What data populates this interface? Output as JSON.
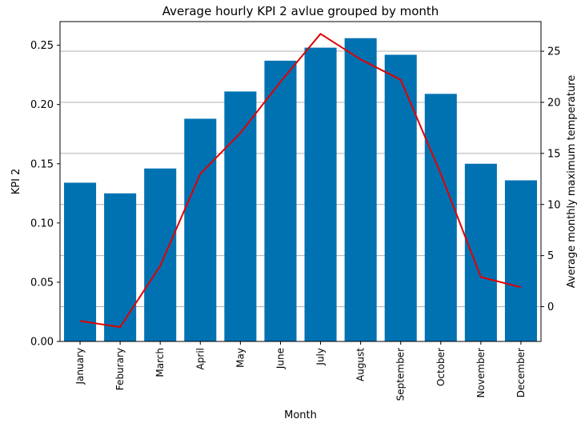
{
  "chart_data": {
    "type": "bar",
    "title": "Average hourly KPI 2 avlue grouped by month",
    "xlabel": "Month",
    "ylabel": "KPI 2",
    "y2label": "Average monthly maximum temperature",
    "categories": [
      "January",
      "Feburary",
      "March",
      "April",
      "May",
      "June",
      "July",
      "August",
      "September",
      "October",
      "November",
      "December"
    ],
    "ylim": [
      0,
      0.27
    ],
    "y2lim": [
      -3.4,
      27.9
    ],
    "yticks": [
      "0.00",
      "0.05",
      "0.10",
      "0.15",
      "0.20",
      "0.25"
    ],
    "y2ticks": [
      "0",
      "5",
      "10",
      "15",
      "20",
      "25"
    ],
    "grid": "horizontal lines at secondary-axis ticks",
    "colors": {
      "bars": "#0072b2",
      "line": "#e00000",
      "grid": "#b0b0b0"
    },
    "series": [
      {
        "type": "bar",
        "axis": "left",
        "values": [
          0.134,
          0.125,
          0.146,
          0.188,
          0.211,
          0.237,
          0.248,
          0.256,
          0.242,
          0.209,
          0.15,
          0.136
        ]
      },
      {
        "type": "line",
        "axis": "right",
        "values": [
          -1.4,
          -2.0,
          4.0,
          13.0,
          17.0,
          22.0,
          26.7,
          24.2,
          22.2,
          13.0,
          2.9,
          1.9
        ]
      }
    ]
  }
}
